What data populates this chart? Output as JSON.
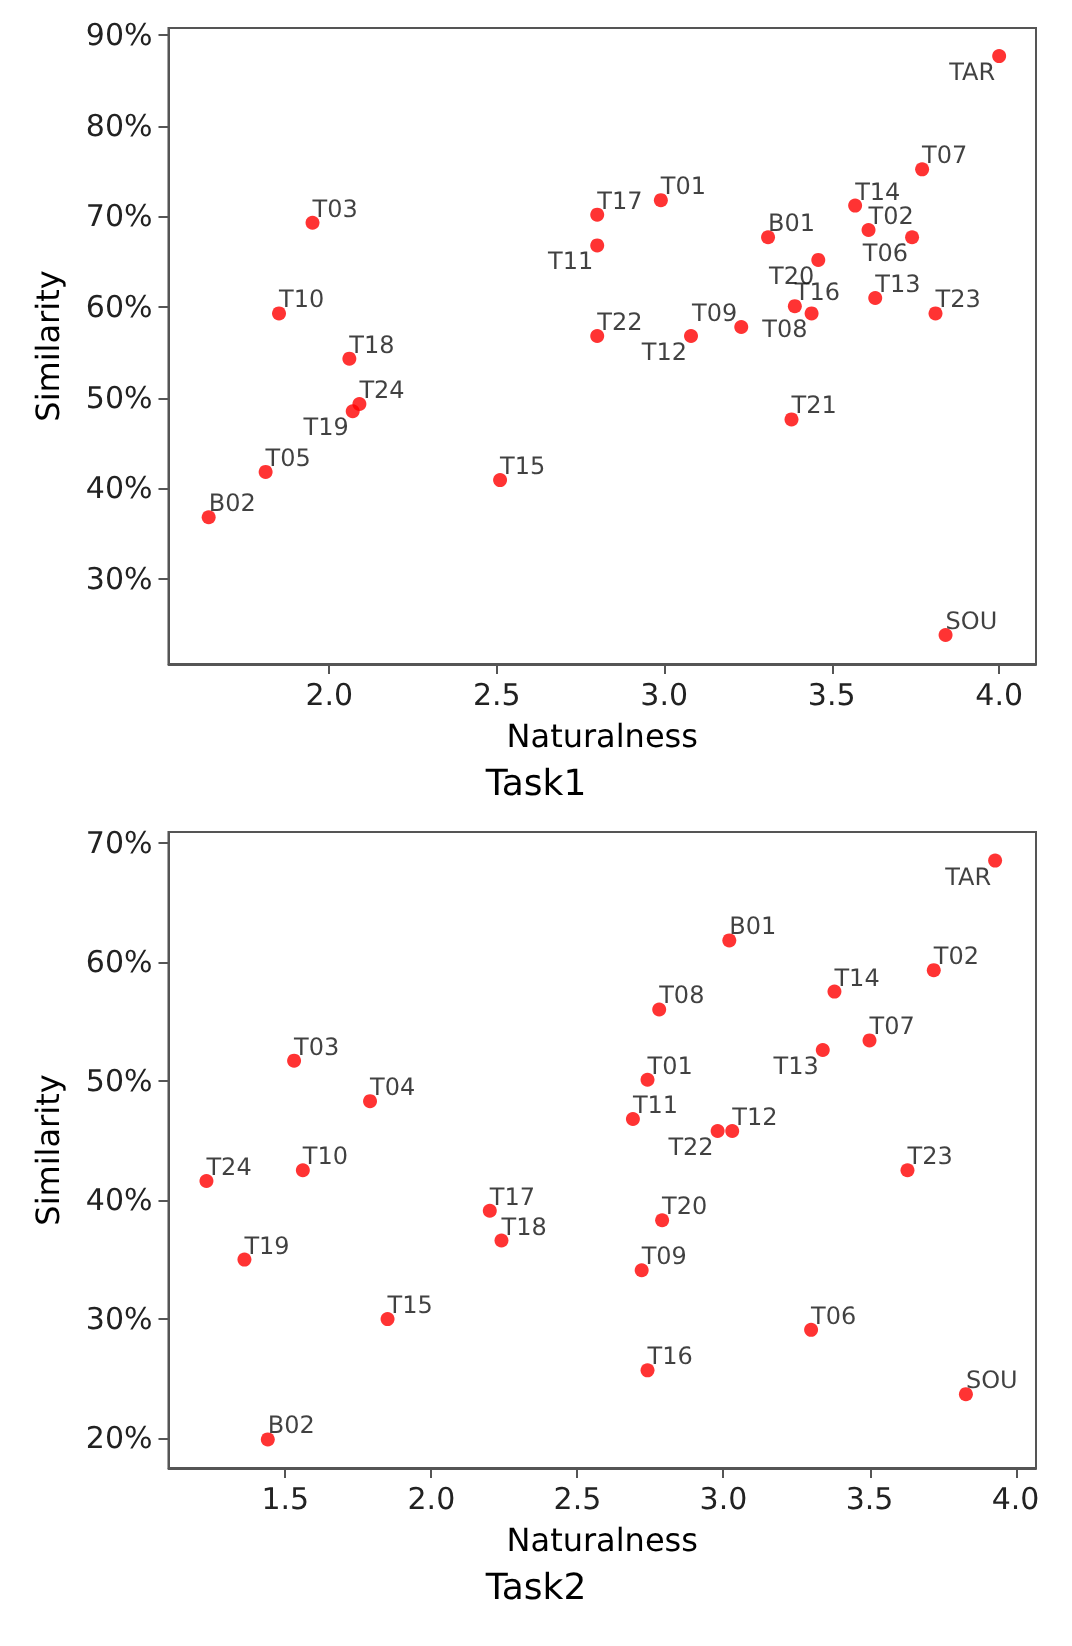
{
  "chart_data": [
    {
      "type": "scatter",
      "title": "Task1",
      "xlabel": "Naturalness",
      "ylabel": "Similarity",
      "marker": "circle",
      "xlim": [
        1.52,
        4.11
      ],
      "ylim": [
        20.6,
        90.8
      ],
      "xticks": [
        {
          "value": 2,
          "label": "2.0"
        },
        {
          "value": 2.5,
          "label": "2.5"
        },
        {
          "value": 3,
          "label": "3.0"
        },
        {
          "value": 3.5,
          "label": "3.5"
        },
        {
          "value": 4,
          "label": "4.0"
        }
      ],
      "yticks": [
        {
          "value": 30,
          "label": "30%"
        },
        {
          "value": 40,
          "label": "40%"
        },
        {
          "value": 50,
          "label": "50%"
        },
        {
          "value": 60,
          "label": "60%"
        },
        {
          "value": 70,
          "label": "70%"
        },
        {
          "value": 80,
          "label": "80%"
        },
        {
          "value": 90,
          "label": "90%"
        }
      ],
      "series": [
        {
          "color": "#ff0000",
          "x": [
            4.0,
            3.77,
            2.99,
            2.8,
            2.8,
            3.57,
            3.61,
            3.74,
            3.31,
            3.46,
            1.95,
            3.39,
            3.44,
            3.63,
            3.81,
            3.08,
            3.23,
            2.8,
            1.85,
            2.06,
            2.09,
            2.07,
            3.38,
            1.81,
            2.51,
            1.64,
            3.84
          ],
          "values": [
            87.7,
            75.2,
            71.8,
            70.2,
            66.8,
            71.2,
            68.5,
            67.7,
            67.7,
            65.2,
            69.3,
            60.1,
            59.3,
            61.0,
            59.3,
            56.8,
            57.8,
            56.8,
            59.3,
            54.3,
            49.3,
            48.5,
            47.6,
            41.8,
            40.9,
            36.8,
            23.8
          ]
        }
      ],
      "annotations": [
        {
          "text": "TAR",
          "x": 4.0,
          "y": 87.7
        },
        {
          "text": "T07",
          "x": 3.77,
          "y": 75.2
        },
        {
          "text": "T01",
          "x": 2.99,
          "y": 71.8
        },
        {
          "text": "T17",
          "x": 2.8,
          "y": 70.2
        },
        {
          "text": "T11",
          "x": 2.8,
          "y": 66.8
        },
        {
          "text": "T14",
          "x": 3.57,
          "y": 71.2
        },
        {
          "text": "T02",
          "x": 3.61,
          "y": 68.5
        },
        {
          "text": "T06",
          "x": 3.74,
          "y": 67.7
        },
        {
          "text": "B01",
          "x": 3.31,
          "y": 67.7
        },
        {
          "text": "T20",
          "x": 3.46,
          "y": 65.2
        },
        {
          "text": "T03",
          "x": 1.95,
          "y": 69.3
        },
        {
          "text": "T16",
          "x": 3.39,
          "y": 60.1
        },
        {
          "text": "T08",
          "x": 3.44,
          "y": 59.3
        },
        {
          "text": "T13",
          "x": 3.63,
          "y": 61.0
        },
        {
          "text": "T23",
          "x": 3.81,
          "y": 59.3
        },
        {
          "text": "T12",
          "x": 3.08,
          "y": 56.8
        },
        {
          "text": "T09",
          "x": 3.23,
          "y": 57.8
        },
        {
          "text": "T22",
          "x": 2.8,
          "y": 56.8
        },
        {
          "text": "T10",
          "x": 1.85,
          "y": 59.3
        },
        {
          "text": "T18",
          "x": 2.06,
          "y": 54.3
        },
        {
          "text": "T24",
          "x": 2.09,
          "y": 49.3
        },
        {
          "text": "T19",
          "x": 2.07,
          "y": 48.5
        },
        {
          "text": "T21",
          "x": 3.38,
          "y": 47.6
        },
        {
          "text": "T05",
          "x": 1.81,
          "y": 41.8
        },
        {
          "text": "T15",
          "x": 2.51,
          "y": 40.9
        },
        {
          "text": "B02",
          "x": 1.64,
          "y": 36.8
        },
        {
          "text": "SOU",
          "x": 3.84,
          "y": 23.8
        }
      ]
    },
    {
      "type": "scatter",
      "title": "Task2",
      "xlabel": "Naturalness",
      "ylabel": "Similarity",
      "marker": "circle",
      "xlim": [
        1.1,
        4.07
      ],
      "ylim": [
        17.5,
        70.9
      ],
      "xticks": [
        {
          "value": 1.5,
          "label": "1.5"
        },
        {
          "value": 2,
          "label": "2.0"
        },
        {
          "value": 2.5,
          "label": "2.5"
        },
        {
          "value": 3,
          "label": "3.0"
        },
        {
          "value": 3.5,
          "label": "3.5"
        },
        {
          "value": 4,
          "label": "4.0"
        }
      ],
      "yticks": [
        {
          "value": 20,
          "label": "20%"
        },
        {
          "value": 30,
          "label": "30%"
        },
        {
          "value": 40,
          "label": "40%"
        },
        {
          "value": 50,
          "label": "50%"
        },
        {
          "value": 60,
          "label": "60%"
        },
        {
          "value": 70,
          "label": "70%"
        }
      ],
      "series": [
        {
          "color": "#ff0000",
          "x": [
            3.93,
            3.02,
            3.72,
            3.38,
            2.78,
            3.34,
            3.5,
            1.53,
            2.74,
            1.79,
            2.69,
            2.98,
            3.03,
            1.23,
            1.56,
            3.63,
            2.2,
            2.24,
            2.79,
            1.36,
            2.72,
            1.85,
            3.3,
            2.74,
            3.83,
            1.44
          ],
          "values": [
            68.5,
            61.8,
            59.3,
            57.5,
            56.0,
            52.6,
            53.4,
            51.7,
            50.1,
            48.3,
            46.8,
            45.8,
            45.8,
            41.6,
            42.5,
            42.5,
            39.1,
            36.6,
            38.3,
            35.0,
            34.1,
            30.0,
            29.1,
            25.7,
            23.7,
            19.9
          ]
        }
      ],
      "annotations": [
        {
          "text": "TAR",
          "x": 3.93,
          "y": 68.5
        },
        {
          "text": "B01",
          "x": 3.02,
          "y": 61.8
        },
        {
          "text": "T02",
          "x": 3.72,
          "y": 59.3
        },
        {
          "text": "T14",
          "x": 3.38,
          "y": 57.5
        },
        {
          "text": "T08",
          "x": 2.78,
          "y": 56.0
        },
        {
          "text": "T13",
          "x": 3.34,
          "y": 52.6
        },
        {
          "text": "T07",
          "x": 3.5,
          "y": 53.4
        },
        {
          "text": "T03",
          "x": 1.53,
          "y": 51.7
        },
        {
          "text": "T01",
          "x": 2.74,
          "y": 50.1
        },
        {
          "text": "T04",
          "x": 1.79,
          "y": 48.3
        },
        {
          "text": "T11",
          "x": 2.69,
          "y": 46.8
        },
        {
          "text": "T22",
          "x": 2.98,
          "y": 45.8
        },
        {
          "text": "T12",
          "x": 3.03,
          "y": 45.8
        },
        {
          "text": "T24",
          "x": 1.23,
          "y": 41.6
        },
        {
          "text": "T10",
          "x": 1.56,
          "y": 42.5
        },
        {
          "text": "T23",
          "x": 3.63,
          "y": 42.5
        },
        {
          "text": "T17",
          "x": 2.2,
          "y": 39.1
        },
        {
          "text": "T18",
          "x": 2.24,
          "y": 36.6
        },
        {
          "text": "T20",
          "x": 2.79,
          "y": 38.3
        },
        {
          "text": "T19",
          "x": 1.36,
          "y": 35.0
        },
        {
          "text": "T09",
          "x": 2.72,
          "y": 34.1
        },
        {
          "text": "T15",
          "x": 1.85,
          "y": 30.0
        },
        {
          "text": "T06",
          "x": 3.3,
          "y": 29.1
        },
        {
          "text": "T16",
          "x": 2.74,
          "y": 25.7
        },
        {
          "text": "SOU",
          "x": 3.83,
          "y": 23.7
        },
        {
          "text": "B02",
          "x": 1.44,
          "y": 19.9
        }
      ]
    }
  ]
}
